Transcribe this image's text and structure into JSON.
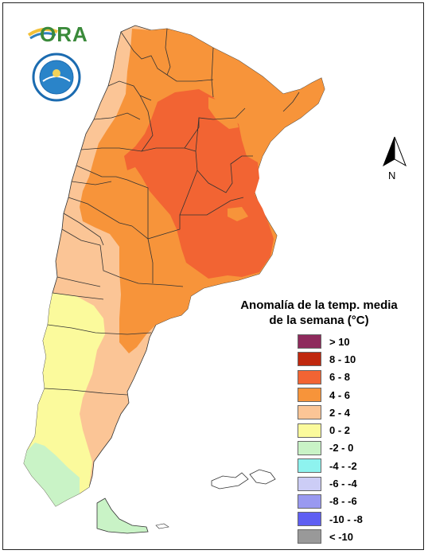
{
  "logo": {
    "text": "ORA"
  },
  "seal": {
    "name": "smn-seal"
  },
  "north_arrow": {
    "label": "N"
  },
  "legend": {
    "title_line1": "Anomalía de la temp. media",
    "title_line2": "de la semana (°C)",
    "items": [
      {
        "label": "> 10",
        "color": "#8e2a5c"
      },
      {
        "label": "8 - 10",
        "color": "#c0280e"
      },
      {
        "label": "6 - 8",
        "color": "#f26433"
      },
      {
        "label": "4 - 6",
        "color": "#f7943a"
      },
      {
        "label": "2 - 4",
        "color": "#fbc596"
      },
      {
        "label": "0 - 2",
        "color": "#fbfa9c"
      },
      {
        "label": "-2 - 0",
        "color": "#c9f3c6"
      },
      {
        "label": "-4 - -2",
        "color": "#8ef3ef"
      },
      {
        "label": "-6 - -4",
        "color": "#cccdf6"
      },
      {
        "label": "-8 - -6",
        "color": "#9999f0"
      },
      {
        "label": "-10 - -8",
        "color": "#5e5ef2"
      },
      {
        "label": "< -10",
        "color": "#999999"
      }
    ]
  }
}
